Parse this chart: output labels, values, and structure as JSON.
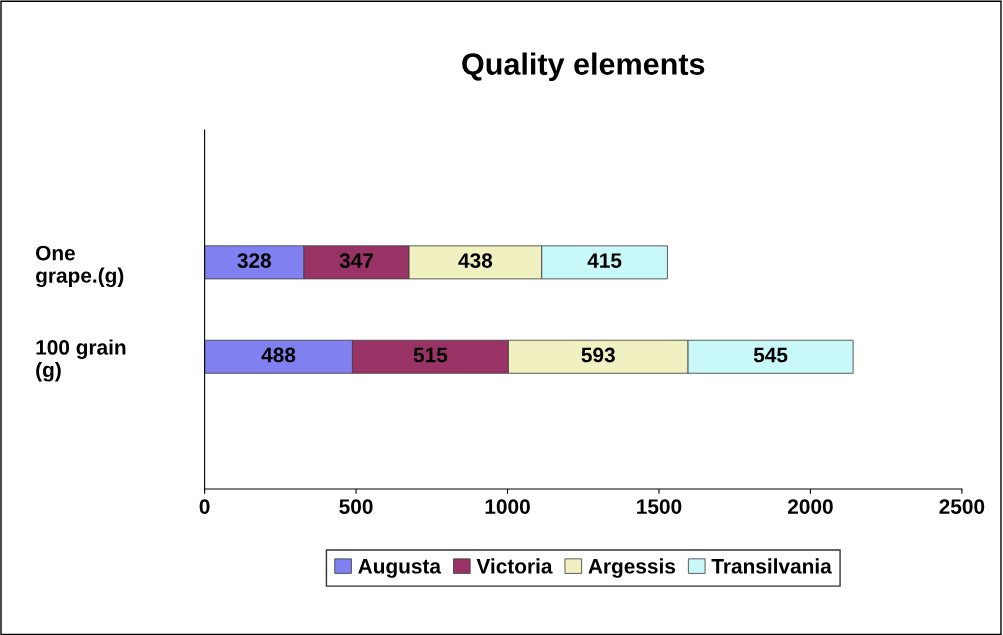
{
  "chart_data": {
    "type": "bar",
    "title": "Quality elements",
    "orientation": "horizontal",
    "stacked": true,
    "categories": [
      "One grape.(g)",
      "100 grain (g)"
    ],
    "series": [
      {
        "name": "Augusta",
        "color": "#8080f0",
        "values": [
          328,
          488
        ]
      },
      {
        "name": "Victoria",
        "color": "#993366",
        "values": [
          347,
          515
        ]
      },
      {
        "name": "Argessis",
        "color": "#f0f0c0",
        "values": [
          438,
          593
        ]
      },
      {
        "name": "Transilvania",
        "color": "#c8f8f8",
        "values": [
          415,
          545
        ]
      }
    ],
    "xlim": [
      0,
      2500
    ],
    "xticks": [
      0,
      500,
      1000,
      1500,
      2000,
      2500
    ],
    "data_labels": true,
    "legend": "bottom",
    "grid": false
  }
}
